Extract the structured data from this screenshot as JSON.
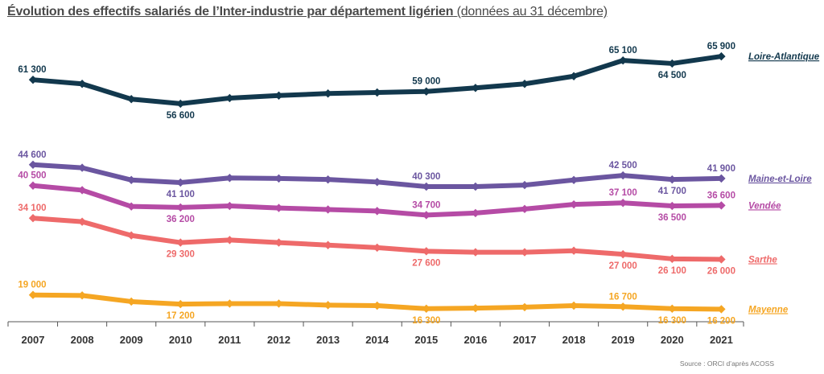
{
  "title": {
    "main": "Évolution des effectifs salariés de l’Inter-industrie par département ligérien",
    "sub": "(données au 31 décembre)"
  },
  "source": "Source : ORCI d’après ACOSS",
  "chart_data": {
    "type": "line",
    "title": "Évolution des effectifs salariés de l’Inter-industrie par département ligérien (données au 31 décembre)",
    "x": [
      "2007",
      "2008",
      "2009",
      "2010",
      "2011",
      "2012",
      "2013",
      "2014",
      "2015",
      "2016",
      "2017",
      "2018",
      "2019",
      "2020",
      "2021"
    ],
    "ylim": [
      0,
      70000
    ],
    "grid": false,
    "legend": "right, at line ends",
    "series": [
      {
        "name": "Loire-Atlantique",
        "color": "#12384d",
        "values": [
          61300,
          60500,
          57500,
          56600,
          57700,
          58200,
          58600,
          58800,
          59000,
          59700,
          60500,
          62000,
          65100,
          64500,
          65900
        ],
        "labels": [
          {
            "i": 0,
            "text": "61 300",
            "pos": "above"
          },
          {
            "i": 3,
            "text": "56 600",
            "pos": "below"
          },
          {
            "i": 8,
            "text": "59 000",
            "pos": "above"
          },
          {
            "i": 12,
            "text": "65 100",
            "pos": "above"
          },
          {
            "i": 13,
            "text": "64 500",
            "pos": "below"
          },
          {
            "i": 14,
            "text": "65 900",
            "pos": "above"
          }
        ]
      },
      {
        "name": "Maine-et-Loire",
        "color": "#6b56a0",
        "values": [
          44600,
          44000,
          41600,
          41100,
          42000,
          41900,
          41700,
          41200,
          40300,
          40300,
          40600,
          41600,
          42500,
          41700,
          41900
        ],
        "labels": [
          {
            "i": 0,
            "text": "44 600",
            "pos": "above"
          },
          {
            "i": 3,
            "text": "41 100",
            "pos": "below"
          },
          {
            "i": 8,
            "text": "40 300",
            "pos": "above"
          },
          {
            "i": 12,
            "text": "42 500",
            "pos": "above"
          },
          {
            "i": 13,
            "text": "41 700",
            "pos": "below"
          },
          {
            "i": 14,
            "text": "41 900",
            "pos": "above"
          }
        ]
      },
      {
        "name": "Vendée",
        "color": "#b54ba5",
        "values": [
          40500,
          39600,
          36400,
          36200,
          36500,
          36100,
          35800,
          35500,
          34700,
          35100,
          35900,
          36800,
          37100,
          36500,
          36600
        ],
        "labels": [
          {
            "i": 0,
            "text": "40 500",
            "pos": "above"
          },
          {
            "i": 3,
            "text": "36 200",
            "pos": "below"
          },
          {
            "i": 8,
            "text": "34 700",
            "pos": "above"
          },
          {
            "i": 12,
            "text": "37 100",
            "pos": "above"
          },
          {
            "i": 13,
            "text": "36 500",
            "pos": "below"
          },
          {
            "i": 14,
            "text": "36 600",
            "pos": "above"
          }
        ]
      },
      {
        "name": "Sarthe",
        "color": "#ee6a6a",
        "values": [
          34100,
          33400,
          30700,
          29300,
          29800,
          29300,
          28800,
          28300,
          27600,
          27400,
          27400,
          27700,
          27000,
          26100,
          26000
        ],
        "labels": [
          {
            "i": 0,
            "text": "34 100",
            "pos": "above"
          },
          {
            "i": 3,
            "text": "29 300",
            "pos": "below"
          },
          {
            "i": 8,
            "text": "27 600",
            "pos": "below"
          },
          {
            "i": 12,
            "text": "27 000",
            "pos": "below"
          },
          {
            "i": 13,
            "text": "26 100",
            "pos": "below"
          },
          {
            "i": 14,
            "text": "26 000",
            "pos": "below"
          }
        ]
      },
      {
        "name": "Mayenne",
        "color": "#f5a623",
        "values": [
          19000,
          18900,
          17700,
          17200,
          17300,
          17300,
          17000,
          16900,
          16300,
          16400,
          16600,
          16900,
          16700,
          16300,
          16200
        ],
        "labels": [
          {
            "i": 0,
            "text": "19 000",
            "pos": "above"
          },
          {
            "i": 3,
            "text": "17 200",
            "pos": "below"
          },
          {
            "i": 8,
            "text": "16 300",
            "pos": "below"
          },
          {
            "i": 12,
            "text": "16 700",
            "pos": "above"
          },
          {
            "i": 13,
            "text": "16 300",
            "pos": "below"
          },
          {
            "i": 14,
            "text": "16 200",
            "pos": "below"
          }
        ]
      }
    ]
  }
}
